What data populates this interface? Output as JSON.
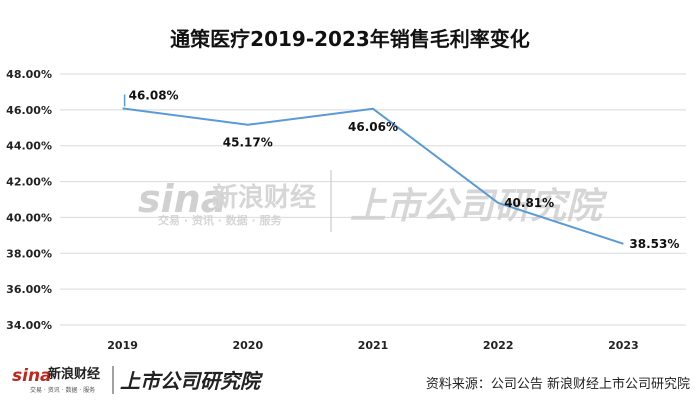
{
  "chart_data": {
    "type": "line",
    "title": "通策医疗2019-2023年销售毛利率变化",
    "xlabel": "",
    "ylabel": "",
    "categories": [
      "2019",
      "2020",
      "2021",
      "2022",
      "2023"
    ],
    "series": [
      {
        "values": [
          46.08,
          45.17,
          46.06,
          40.81,
          38.53
        ],
        "labels": [
          "46.08%",
          "45.17%",
          "46.06%",
          "40.81%",
          "38.53%"
        ],
        "color": "#5b9bd5"
      }
    ],
    "ylim": [
      34,
      48
    ],
    "yticks": [
      34,
      36,
      38,
      40,
      42,
      44,
      46,
      48
    ],
    "ytick_labels": [
      "34.00%",
      "36.00%",
      "38.00%",
      "40.00%",
      "42.00%",
      "44.00%",
      "46.00%",
      "48.00%"
    ],
    "grid": true,
    "legend": "none"
  },
  "watermark": {
    "sina_logo": "sina",
    "brand": "新浪财经",
    "sub": "交易 · 资讯 · 数据 · 服务",
    "institute": "上市公司研究院"
  },
  "footer": {
    "logo_sina": "sina",
    "logo_brand": "新浪财经",
    "logo_sub": "交易 · 资讯 · 数据 · 服务",
    "logo_institute": "上市公司研究院",
    "source": "资料来源：公司公告 新浪财经上市公司研究院"
  }
}
